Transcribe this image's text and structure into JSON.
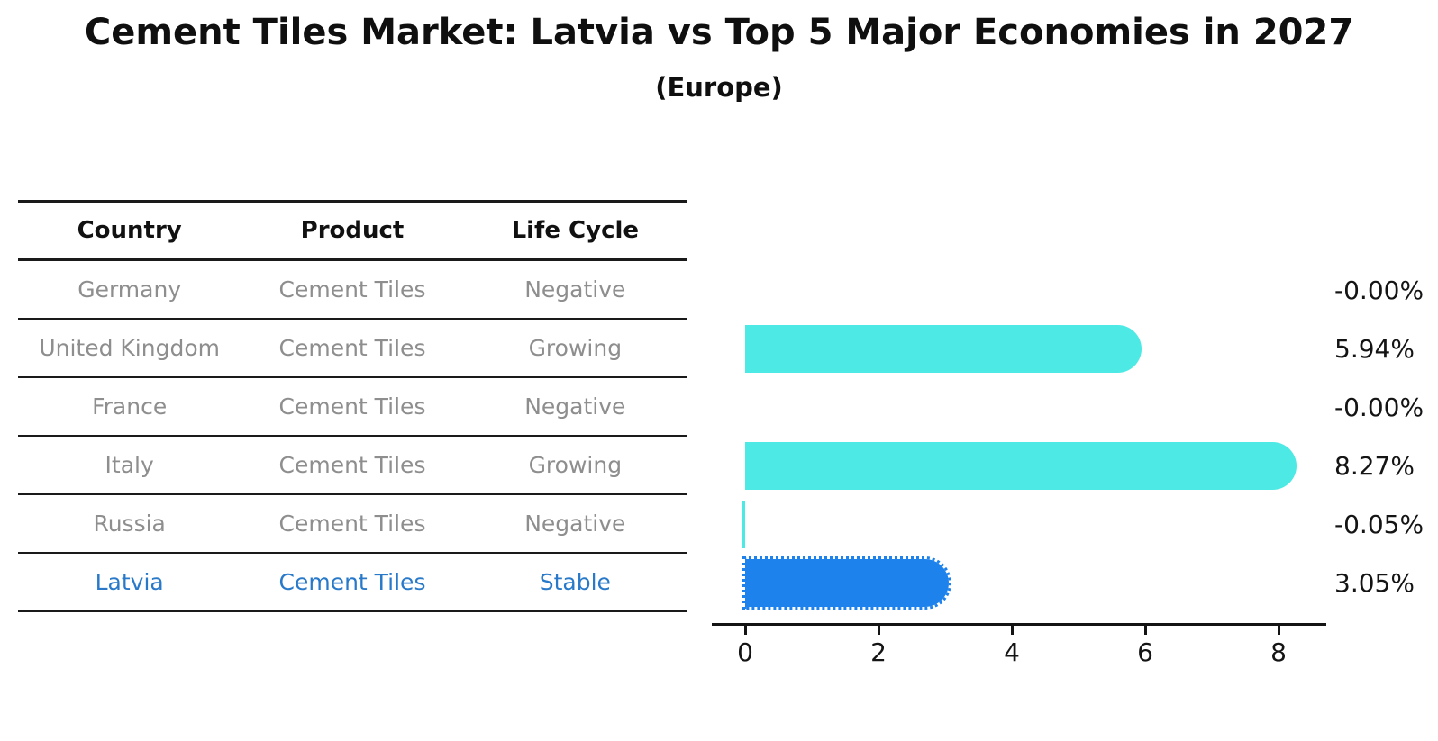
{
  "header": {
    "title": "Cement Tiles Market: Latvia vs Top 5 Major Economies in 2027",
    "subtitle": "(Europe)"
  },
  "table": {
    "columns": [
      "Country",
      "Product",
      "Life Cycle"
    ],
    "rows": [
      {
        "country": "Germany",
        "product": "Cement Tiles",
        "life_cycle": "Negative",
        "highlight": false
      },
      {
        "country": "United Kingdom",
        "product": "Cement Tiles",
        "life_cycle": "Growing",
        "highlight": false
      },
      {
        "country": "France",
        "product": "Cement Tiles",
        "life_cycle": "Negative",
        "highlight": false
      },
      {
        "country": "Italy",
        "product": "Cement Tiles",
        "life_cycle": "Growing",
        "highlight": false
      },
      {
        "country": "Russia",
        "product": "Cement Tiles",
        "life_cycle": "Negative",
        "highlight": false
      },
      {
        "country": "Latvia",
        "product": "Cement Tiles",
        "life_cycle": "Stable",
        "highlight": true
      }
    ]
  },
  "chart_data": {
    "type": "bar",
    "orientation": "horizontal",
    "title": "Cement Tiles Market: Latvia vs Top 5 Major Economies in 2027",
    "subtitle": "(Europe)",
    "categories": [
      "Germany",
      "United Kingdom",
      "France",
      "Italy",
      "Russia",
      "Latvia"
    ],
    "values": [
      -0.0,
      5.94,
      -0.0,
      8.27,
      -0.05,
      3.05
    ],
    "value_labels": [
      "-0.00%",
      "5.94%",
      "-0.00%",
      "8.27%",
      "-0.05%",
      "3.05%"
    ],
    "unit": "%",
    "xlabel": "",
    "ylabel": "",
    "xlim": [
      0,
      8.7
    ],
    "x_ticks": [
      0,
      2,
      4,
      6,
      8
    ],
    "grid": false,
    "legend": false,
    "highlight_index": 5,
    "bar_colors": {
      "default": "#4de9e4",
      "highlight": "#1e82ec"
    }
  },
  "colors": {
    "background": "#ffffff",
    "text": "#141414",
    "table_text_muted": "#8e8e8e",
    "highlight_text": "#2879c9",
    "bar_default": "#4de9e4",
    "bar_highlight": "#1e82ec"
  }
}
